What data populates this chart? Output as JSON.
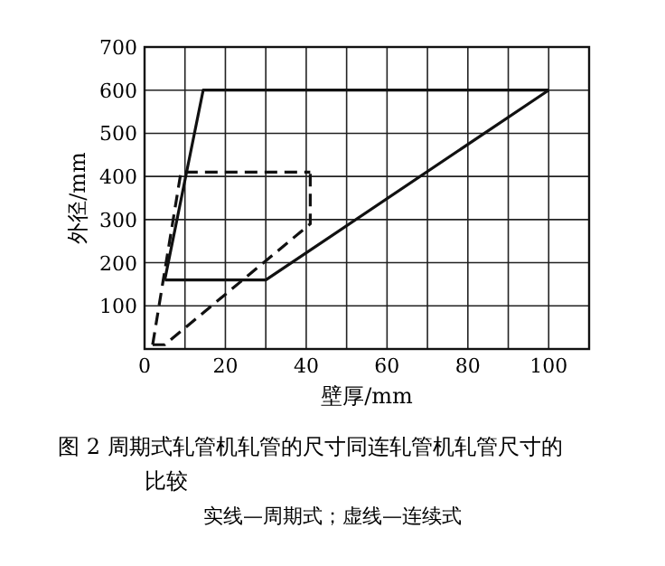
{
  "chart_data": {
    "type": "line",
    "title": "图 2  周期式轧管机轧管的尺寸同连轧管机轧管尺寸的比较",
    "xlabel": "壁厚/mm",
    "ylabel": "外径/mm",
    "xlim": [
      0,
      110
    ],
    "ylim": [
      0,
      700
    ],
    "xticks": [
      0,
      20,
      40,
      60,
      80,
      100
    ],
    "yticks": [
      100,
      200,
      300,
      400,
      500,
      600,
      700
    ],
    "grid": true,
    "legend": false,
    "marker": "none",
    "series": [
      {
        "color": "#111111",
        "line_style": "solid",
        "x": [
          5,
          14.5,
          100
        ],
        "values": [
          160,
          600,
          600
        ]
      },
      {
        "color": "#111111",
        "line_style": "solid",
        "x": [
          5,
          30,
          100
        ],
        "values": [
          160,
          160,
          600
        ]
      },
      {
        "color": "#111111",
        "line_style": "dashed",
        "x": [
          2,
          9,
          41
        ],
        "values": [
          10,
          410,
          410
        ]
      },
      {
        "color": "#111111",
        "line_style": "dashed",
        "x": [
          2,
          5,
          41,
          41
        ],
        "values": [
          10,
          10,
          290,
          410
        ]
      }
    ],
    "annotations": [
      "实线—周期式；虚线—连续式"
    ]
  }
}
